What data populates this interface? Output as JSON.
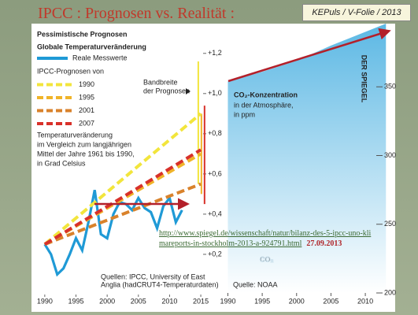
{
  "slide": {
    "title": "IPCC : Prognosen vs. Realität :",
    "badge": "KEPuls / V-Folie / 2013",
    "link": "http://www.spiegel.de/wissenschaft/natur/bilanz-des-5-ipcc-uno-klimareports-in-stockholm-2013-a-924791.html",
    "date": "27.09.2013"
  },
  "chart_data": [
    {
      "type": "line",
      "title": "Pessimistische Prognosen",
      "subtitle": "Globale Temperaturveränderung",
      "legend_title": "IPCC-Prognosen von",
      "note": [
        "Temperaturveränderung",
        "im Vergleich zum langjährigen",
        "Mittel der Jahre 1961 bis 1990,",
        "in Grad Celsius"
      ],
      "range_label": [
        "Bandbreite",
        "der Prognosen"
      ],
      "source": [
        "Quellen: IPCC, University of East",
        "Anglia (hadCRUT4-Temperaturdaten)"
      ],
      "series": [
        {
          "name": "Reale Messwerte",
          "color": "#1f9ad6",
          "x": [
            1990,
            1991,
            1992,
            1993,
            1994,
            1995,
            1996,
            1997,
            1998,
            1999,
            2000,
            2001,
            2002,
            2003,
            2004,
            2005,
            2006,
            2007,
            2008,
            2009,
            2010,
            2011,
            2012
          ],
          "values": [
            0.25,
            0.2,
            0.1,
            0.13,
            0.2,
            0.28,
            0.22,
            0.36,
            0.52,
            0.3,
            0.28,
            0.4,
            0.46,
            0.45,
            0.42,
            0.48,
            0.43,
            0.41,
            0.33,
            0.44,
            0.48,
            0.36,
            0.42
          ]
        },
        {
          "name": "1990",
          "color": "#f2e53c",
          "dashed": true,
          "x": [
            1990,
            2015
          ],
          "values": [
            0.25,
            0.9
          ]
        },
        {
          "name": "1995",
          "color": "#f0b429",
          "dashed": true,
          "x": [
            1990,
            2015
          ],
          "values": [
            0.25,
            0.7
          ]
        },
        {
          "name": "2001",
          "color": "#d9822b",
          "dashed": true,
          "x": [
            1990,
            2015
          ],
          "values": [
            0.25,
            0.55
          ]
        },
        {
          "name": "2007",
          "color": "#d8312a",
          "dashed": true,
          "x": [
            1990,
            2015
          ],
          "values": [
            0.25,
            0.72
          ]
        }
      ],
      "ranges": [
        {
          "color": "#f2e53c",
          "x": 2014.6,
          "values": [
            0.55,
            1.16
          ]
        },
        {
          "color": "#f0b429",
          "x": 2015.1,
          "values": [
            0.5,
            0.9
          ]
        },
        {
          "color": "#d8312a",
          "x": 2015.6,
          "values": [
            0.45,
            0.94
          ]
        }
      ],
      "xlim": [
        1988,
        2016
      ],
      "xticks": [
        1990,
        1995,
        2000,
        2005,
        2010,
        2015
      ],
      "ylim": [
        0,
        1.25
      ],
      "yticks": [
        {
          "value": 0.2,
          "label": "+0,2"
        },
        {
          "value": 0.4,
          "label": "+0,4"
        },
        {
          "value": 0.6,
          "label": "+0,6"
        },
        {
          "value": 0.8,
          "label": "+0,8"
        },
        {
          "value": 1.0,
          "label": "+1,0"
        },
        {
          "value": 1.2,
          "label": "+1,2"
        }
      ]
    },
    {
      "type": "area",
      "title": "CO₂-Konzentration",
      "subtitle": [
        "in der Atmosphäre,",
        "in ppm"
      ],
      "watermark": "CO₂",
      "publisher": "DER SPIEGEL",
      "source": "Quelle: NOAA",
      "color": "#6fc3e8",
      "x": [
        1990,
        1995,
        2000,
        2005,
        2010,
        2013
      ],
      "values": [
        354,
        361,
        369,
        380,
        390,
        396
      ],
      "xlim": [
        1988,
        2014
      ],
      "xticks": [
        1990,
        1995,
        2000,
        2005,
        2010
      ],
      "ylim": [
        200,
        396
      ],
      "yticks": [
        200,
        250,
        300,
        350
      ]
    }
  ]
}
